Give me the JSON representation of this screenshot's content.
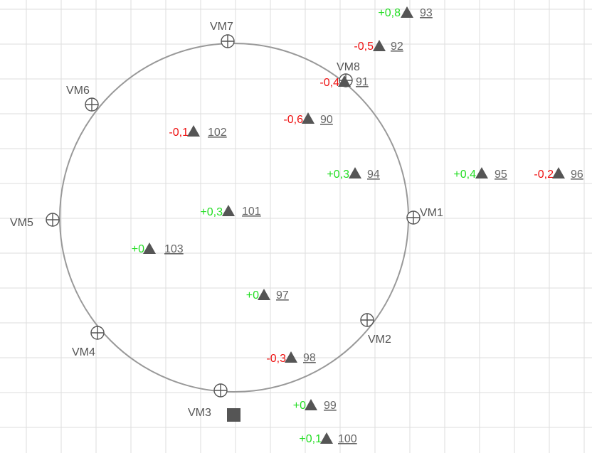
{
  "colors": {
    "grid": "#dedede",
    "circle": "#999999",
    "marker": "#555555",
    "positive": "#22dd22",
    "negative": "#ee1111",
    "square": "#555555"
  },
  "vms": [
    {
      "id": "vm1",
      "label": "VM1"
    },
    {
      "id": "vm2",
      "label": "VM2"
    },
    {
      "id": "vm3",
      "label": "VM3"
    },
    {
      "id": "vm4",
      "label": "VM4"
    },
    {
      "id": "vm5",
      "label": "VM5"
    },
    {
      "id": "vm6",
      "label": "VM6"
    },
    {
      "id": "vm7",
      "label": "VM7"
    },
    {
      "id": "vm8",
      "label": "VM8"
    }
  ],
  "points": [
    {
      "id": "p93",
      "number": "93",
      "delta": "+0,8",
      "sign": "positive"
    },
    {
      "id": "p92",
      "number": "92",
      "delta": "-0,5",
      "sign": "negative"
    },
    {
      "id": "p91",
      "number": "91",
      "delta": "-0,4",
      "sign": "negative"
    },
    {
      "id": "p90",
      "number": "90",
      "delta": "-0,6",
      "sign": "negative"
    },
    {
      "id": "p102",
      "number": "102",
      "delta": "-0,1",
      "sign": "negative"
    },
    {
      "id": "p94",
      "number": "94",
      "delta": "+0,3",
      "sign": "positive"
    },
    {
      "id": "p95",
      "number": "95",
      "delta": "+0,4",
      "sign": "positive"
    },
    {
      "id": "p96",
      "number": "96",
      "delta": "-0,2",
      "sign": "negative"
    },
    {
      "id": "p101",
      "number": "101",
      "delta": "+0,3",
      "sign": "positive"
    },
    {
      "id": "p103",
      "number": "103",
      "delta": "+0",
      "sign": "positive"
    },
    {
      "id": "p97",
      "number": "97",
      "delta": "+0",
      "sign": "positive"
    },
    {
      "id": "p98",
      "number": "98",
      "delta": "-0,3",
      "sign": "negative"
    },
    {
      "id": "p99",
      "number": "99",
      "delta": "+0",
      "sign": "positive"
    },
    {
      "id": "p100",
      "number": "100",
      "delta": "+0,1",
      "sign": "positive"
    }
  ]
}
